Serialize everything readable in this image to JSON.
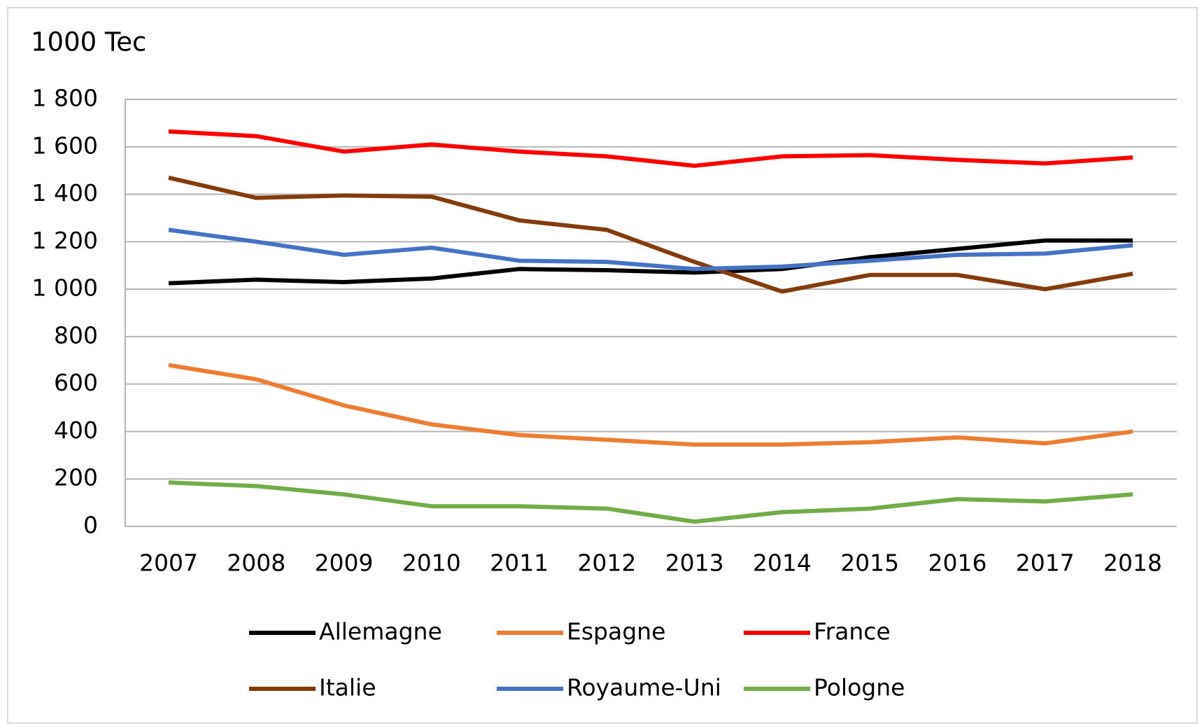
{
  "chart_data": {
    "type": "line",
    "title": "1000 Tec",
    "categories": [
      "2007",
      "2008",
      "2009",
      "2010",
      "2011",
      "2012",
      "2013",
      "2014",
      "2015",
      "2016",
      "2017",
      "2018"
    ],
    "series": [
      {
        "name": "Allemagne",
        "color": "#000000",
        "values": [
          1025,
          1040,
          1030,
          1045,
          1085,
          1080,
          1070,
          1085,
          1135,
          1170,
          1205,
          1205
        ]
      },
      {
        "name": "Espagne",
        "color": "#ed7d31",
        "values": [
          680,
          620,
          510,
          430,
          385,
          365,
          345,
          345,
          355,
          375,
          350,
          400
        ]
      },
      {
        "name": "France",
        "color": "#ff0000",
        "values": [
          1665,
          1645,
          1580,
          1610,
          1580,
          1560,
          1520,
          1560,
          1565,
          1545,
          1530,
          1555
        ]
      },
      {
        "name": "Italie",
        "color": "#843c0c",
        "values": [
          1470,
          1385,
          1395,
          1390,
          1290,
          1250,
          1115,
          990,
          1060,
          1060,
          1000,
          1065
        ]
      },
      {
        "name": "Royaume-Uni",
        "color": "#4472c4",
        "values": [
          1250,
          1200,
          1145,
          1175,
          1120,
          1115,
          1085,
          1095,
          1120,
          1145,
          1150,
          1185
        ]
      },
      {
        "name": "Pologne",
        "color": "#70ad47",
        "values": [
          185,
          170,
          135,
          85,
          85,
          75,
          20,
          60,
          75,
          115,
          105,
          135
        ]
      }
    ],
    "ylim": [
      0,
      1800
    ],
    "yticks": [
      0,
      200,
      400,
      600,
      800,
      {
        "value": 1000,
        "label": "1 000"
      },
      {
        "value": 1200,
        "label": "1 200"
      },
      {
        "value": 1400,
        "label": "1 400"
      },
      {
        "value": 1600,
        "label": "1 600"
      },
      {
        "value": 1800,
        "label": "1 800"
      }
    ],
    "grid": true,
    "legend": "bottom"
  }
}
